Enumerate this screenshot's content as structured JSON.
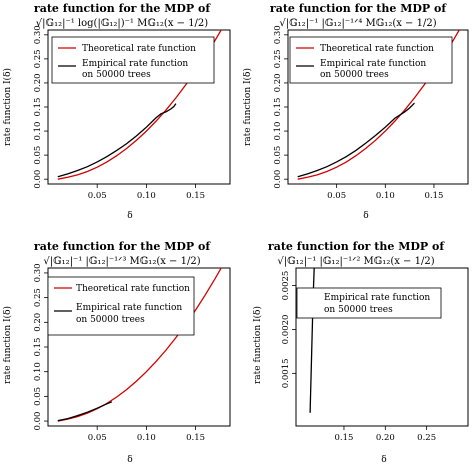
{
  "figure": {
    "panels": [
      {
        "title": "rate function for the MDP of",
        "formula": "√|𝔾₁₂|⁻¹ log(|𝔾₁₂|)⁻¹ M𝔾₁₂(x − 1/2)",
        "xlabel": "δ",
        "ylabel": "rate function I(δ)",
        "legend": [
          "Theoretical rate function",
          "Empirical rate function",
          "on 50000 trees"
        ]
      },
      {
        "title": "rate function for the MDP of",
        "formula": "√|𝔾₁₂|⁻¹ |𝔾₁₂|⁻¹ᐟ⁴ M𝔾₁₂(x − 1/2)",
        "xlabel": "δ",
        "ylabel": "rate function I(δ)",
        "legend": [
          "Theoretical rate function",
          "Empirical rate function",
          "on 50000 trees"
        ]
      },
      {
        "title": "rate function for the MDP of",
        "formula": "√|𝔾₁₂|⁻¹ |𝔾₁₂|⁻¹ᐟ³ M𝔾₁₂(x − 1/2)",
        "xlabel": "δ",
        "ylabel": "rate function I(δ)",
        "legend": [
          "Theoretical rate function",
          "Empirical rate function",
          "on 50000 trees"
        ]
      },
      {
        "title": "rate function for the MDP of",
        "formula": "√|𝔾₁₂|⁻¹ |𝔾₁₂|⁻¹ᐟ² M𝔾₁₂(x − 1/2)",
        "xlabel": "δ",
        "ylabel": "rate function I(δ)",
        "legend": [
          "Empirical rate function",
          "on 50000 trees"
        ]
      }
    ]
  },
  "colors": {
    "theoretical": "#d40000",
    "empirical": "#000000",
    "axis": "#000000"
  },
  "chart_data": [
    {
      "type": "line",
      "xlim": [
        0.0,
        0.185
      ],
      "ylim": [
        -0.01,
        0.31
      ],
      "x_ticks": [
        0.05,
        0.1,
        0.15
      ],
      "x_tick_labels": [
        "0.05",
        "0.10",
        "0.15"
      ],
      "y_ticks": [
        0.0,
        0.05,
        0.1,
        0.15,
        0.2,
        0.25,
        0.3
      ],
      "y_tick_labels": [
        "0.00",
        "0.05",
        "0.10",
        "0.15",
        "0.20",
        "0.25",
        "0.30"
      ],
      "legend_position": "top-right",
      "series": [
        {
          "name": "Theoretical rate function",
          "x": [
            0.01,
            0.02,
            0.03,
            0.04,
            0.05,
            0.06,
            0.07,
            0.08,
            0.09,
            0.1,
            0.11,
            0.12,
            0.13,
            0.14,
            0.15,
            0.16,
            0.17,
            0.18,
            0.185
          ],
          "y": [
            0.0,
            0.004,
            0.009,
            0.016,
            0.025,
            0.036,
            0.049,
            0.064,
            0.081,
            0.1,
            0.121,
            0.144,
            0.169,
            0.196,
            0.225,
            0.256,
            0.289,
            0.324,
            0.342
          ]
        },
        {
          "name": "Empirical rate function on 50000 trees",
          "x": [
            0.01,
            0.02,
            0.03,
            0.04,
            0.05,
            0.06,
            0.07,
            0.08,
            0.09,
            0.1,
            0.11,
            0.115,
            0.12,
            0.125,
            0.128,
            0.13
          ],
          "y": [
            0.005,
            0.011,
            0.018,
            0.026,
            0.036,
            0.047,
            0.06,
            0.074,
            0.09,
            0.108,
            0.128,
            0.136,
            0.14,
            0.146,
            0.151,
            0.157
          ]
        }
      ]
    },
    {
      "type": "line",
      "xlim": [
        0.0,
        0.185
      ],
      "ylim": [
        -0.01,
        0.31
      ],
      "x_ticks": [
        0.05,
        0.1,
        0.15
      ],
      "x_tick_labels": [
        "0.05",
        "0.10",
        "0.15"
      ],
      "y_ticks": [
        0.0,
        0.05,
        0.1,
        0.15,
        0.2,
        0.25,
        0.3
      ],
      "y_tick_labels": [
        "0.00",
        "0.05",
        "0.10",
        "0.15",
        "0.20",
        "0.25",
        "0.30"
      ],
      "legend_position": "top-right",
      "series": [
        {
          "name": "Theoretical rate function",
          "x": [
            0.01,
            0.02,
            0.03,
            0.04,
            0.05,
            0.06,
            0.07,
            0.08,
            0.09,
            0.1,
            0.11,
            0.12,
            0.13,
            0.14,
            0.15,
            0.16,
            0.17,
            0.18,
            0.185
          ],
          "y": [
            0.0,
            0.004,
            0.009,
            0.016,
            0.025,
            0.036,
            0.049,
            0.064,
            0.081,
            0.1,
            0.121,
            0.144,
            0.169,
            0.196,
            0.225,
            0.256,
            0.289,
            0.324,
            0.342
          ]
        },
        {
          "name": "Empirical rate function on 50000 trees",
          "x": [
            0.01,
            0.02,
            0.03,
            0.04,
            0.05,
            0.06,
            0.07,
            0.08,
            0.09,
            0.1,
            0.11,
            0.12,
            0.125,
            0.13
          ],
          "y": [
            0.005,
            0.011,
            0.018,
            0.026,
            0.036,
            0.047,
            0.06,
            0.075,
            0.091,
            0.108,
            0.127,
            0.14,
            0.148,
            0.158
          ]
        }
      ]
    },
    {
      "type": "line",
      "xlim": [
        0.0,
        0.185
      ],
      "ylim": [
        -0.01,
        0.31
      ],
      "x_ticks": [
        0.05,
        0.1,
        0.15
      ],
      "x_tick_labels": [
        "0.05",
        "0.10",
        "0.15"
      ],
      "y_ticks": [
        0.0,
        0.05,
        0.1,
        0.15,
        0.2,
        0.25,
        0.3
      ],
      "y_tick_labels": [
        "0.00",
        "0.05",
        "0.10",
        "0.15",
        "0.20",
        "0.25",
        "0.30"
      ],
      "legend_position": "top-right",
      "series": [
        {
          "name": "Theoretical rate function",
          "x": [
            0.01,
            0.02,
            0.03,
            0.04,
            0.05,
            0.06,
            0.07,
            0.08,
            0.09,
            0.1,
            0.11,
            0.12,
            0.13,
            0.14,
            0.15,
            0.16,
            0.17,
            0.18,
            0.185
          ],
          "y": [
            0.0,
            0.004,
            0.009,
            0.016,
            0.025,
            0.036,
            0.049,
            0.064,
            0.081,
            0.1,
            0.121,
            0.144,
            0.169,
            0.196,
            0.225,
            0.256,
            0.289,
            0.324,
            0.342
          ]
        },
        {
          "name": "Empirical rate function on 50000 trees",
          "x": [
            0.01,
            0.02,
            0.03,
            0.04,
            0.05,
            0.06,
            0.065
          ],
          "y": [
            0.001,
            0.005,
            0.011,
            0.018,
            0.026,
            0.035,
            0.039
          ]
        }
      ]
    },
    {
      "type": "line",
      "xlim": [
        0.092,
        0.3
      ],
      "ylim": [
        0.0009,
        0.0027
      ],
      "x_ticks": [
        0.15,
        0.2,
        0.25
      ],
      "x_tick_labels": [
        "0.15",
        "0.20",
        "0.25"
      ],
      "y_ticks": [
        0.0015,
        0.002,
        0.0025
      ],
      "y_tick_labels": [
        "0.0015",
        "0.0020",
        "0.0025"
      ],
      "legend_position": "top-right",
      "series": [
        {
          "name": "Empirical rate function on 50000 trees",
          "x": [
            0.109,
            0.11,
            0.111,
            0.112,
            0.113,
            0.114
          ],
          "y": [
            0.00105,
            0.0014,
            0.00175,
            0.0021,
            0.00245,
            0.0027
          ]
        }
      ]
    }
  ]
}
